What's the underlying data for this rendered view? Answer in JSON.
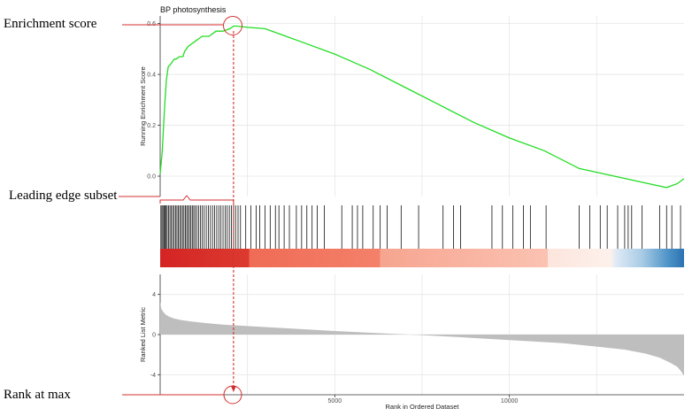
{
  "chart_data": {
    "type": "line",
    "title": "BP photosynthesis",
    "xlabel": "Rank in Ordered Dataset",
    "xlim": [
      0,
      15000
    ],
    "x_ticks": [
      5000,
      10000
    ],
    "x_tick_labels": [
      "5000",
      "10000"
    ],
    "panels": [
      {
        "name": "running-enrichment",
        "ylabel": "Running Enrichment Score",
        "ylim": [
          -0.08,
          0.63
        ],
        "y_ticks": [
          0.0,
          0.2,
          0.4,
          0.6
        ],
        "y_tick_labels": [
          "0.0",
          "0.2",
          "0.4",
          "0.6"
        ],
        "color": "#22dd22",
        "x": [
          0,
          60,
          100,
          140,
          180,
          230,
          300,
          400,
          450,
          550,
          650,
          700,
          800,
          900,
          1000,
          1100,
          1200,
          1400,
          1600,
          1800,
          2000,
          2100,
          2200,
          2500,
          3000,
          3500,
          4000,
          5000,
          6000,
          7000,
          8000,
          9000,
          10000,
          11000,
          12000,
          13000,
          14000,
          14500,
          14800,
          15000
        ],
        "values": [
          0.01,
          0.1,
          0.2,
          0.3,
          0.38,
          0.43,
          0.44,
          0.46,
          0.46,
          0.47,
          0.47,
          0.49,
          0.51,
          0.52,
          0.53,
          0.54,
          0.55,
          0.55,
          0.57,
          0.57,
          0.58,
          0.59,
          0.59,
          0.585,
          0.58,
          0.555,
          0.53,
          0.48,
          0.42,
          0.35,
          0.28,
          0.21,
          0.15,
          0.1,
          0.03,
          0.0,
          -0.03,
          -0.045,
          -0.03,
          -0.01
        ]
      },
      {
        "name": "gene-hits",
        "gene_positions": [
          20,
          50,
          80,
          110,
          140,
          170,
          200,
          240,
          280,
          320,
          360,
          400,
          440,
          480,
          520,
          560,
          600,
          640,
          680,
          720,
          760,
          800,
          840,
          880,
          920,
          960,
          1000,
          1050,
          1100,
          1150,
          1200,
          1260,
          1320,
          1380,
          1440,
          1500,
          1560,
          1620,
          1680,
          1740,
          1800,
          1860,
          1920,
          1980,
          2040,
          2100,
          2160,
          2230,
          2300,
          2450,
          2600,
          2750,
          2850,
          3000,
          3150,
          3300,
          3400,
          3550,
          3700,
          3900,
          4050,
          4200,
          4350,
          4500,
          4700,
          5200,
          5500,
          5650,
          5800,
          6100,
          6300,
          6500,
          6900,
          7400,
          8100,
          8400,
          8600,
          9500,
          9800,
          10100,
          10400,
          10600,
          11050,
          12000,
          12300,
          12600,
          12800,
          13100,
          13300,
          13400,
          13500,
          13800,
          14300,
          14500,
          14650,
          14900
        ],
        "color_gradient": [
          "#d42424",
          "#dc3a2f",
          "#ef6b55",
          "#f6a58f",
          "#fbd1c3",
          "#fce5dc",
          "#dfeaf5",
          "#a8cbe5",
          "#4d93c7",
          "#2c72b2"
        ]
      },
      {
        "name": "ranked-list-metric",
        "ylabel": "Ranked List Metric",
        "ylim": [
          -6,
          6
        ],
        "y_ticks": [
          -4,
          0,
          4
        ],
        "y_tick_labels": [
          "-4",
          "0",
          "4"
        ],
        "fill": "#bebebe",
        "x": [
          0,
          30,
          80,
          150,
          250,
          400,
          600,
          900,
          1300,
          1800,
          2500,
          3500,
          5000,
          6500,
          7500,
          8500,
          10000,
          11500,
          12500,
          13300,
          13900,
          14300,
          14600,
          14800,
          14900,
          15000
        ],
        "values": [
          3.3,
          2.6,
          2.3,
          2.0,
          1.8,
          1.6,
          1.45,
          1.3,
          1.15,
          1.0,
          0.85,
          0.65,
          0.35,
          0.1,
          -0.05,
          -0.25,
          -0.55,
          -0.85,
          -1.2,
          -1.5,
          -1.9,
          -2.3,
          -2.8,
          -3.2,
          -3.6,
          -4.1
        ]
      }
    ],
    "annotations": {
      "enrichment_score_label": "Enrichment score",
      "leading_edge_label": "Leading edge subset",
      "rank_at_max_label": "Rank at max",
      "max_rank": 2100,
      "marker_color": "#d32f2f"
    }
  }
}
